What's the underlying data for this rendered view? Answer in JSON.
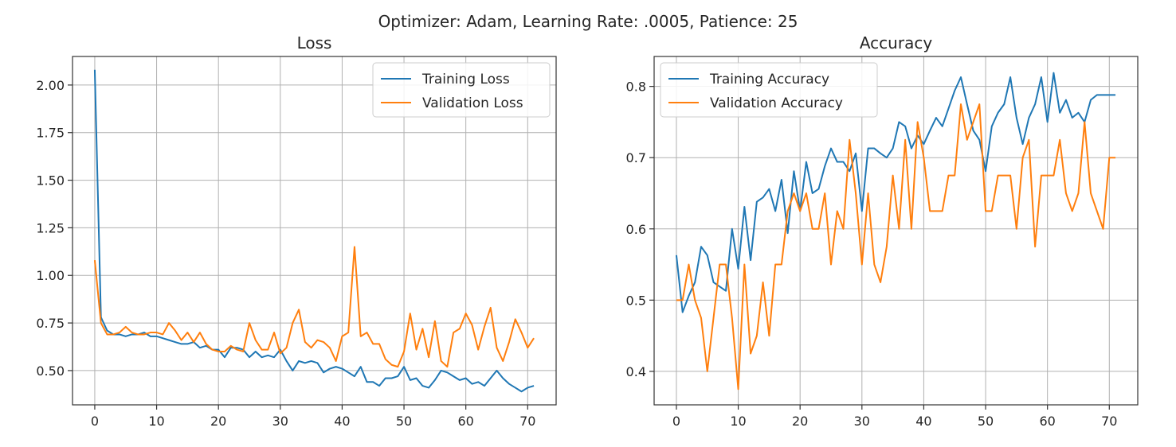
{
  "figure": {
    "suptitle": "Optimizer: Adam, Learning Rate: .0005, Patience: 25"
  },
  "chart_data": [
    {
      "type": "line",
      "title": "Loss",
      "xlabel": "",
      "ylabel": "",
      "xlim": [
        -3.6,
        74.6
      ],
      "ylim": [
        0.32,
        2.15
      ],
      "xticks": [
        0,
        10,
        20,
        30,
        40,
        50,
        60,
        70
      ],
      "yticks": [
        0.5,
        0.75,
        1.0,
        1.25,
        1.5,
        1.75,
        2.0
      ],
      "ytick_labels": [
        "0.50",
        "0.75",
        "1.00",
        "1.25",
        "1.50",
        "1.75",
        "2.00"
      ],
      "grid": true,
      "legend_position": "top-right",
      "x": [
        0,
        1,
        2,
        3,
        4,
        5,
        6,
        7,
        8,
        9,
        10,
        11,
        12,
        13,
        14,
        15,
        16,
        17,
        18,
        19,
        20,
        21,
        22,
        23,
        24,
        25,
        26,
        27,
        28,
        29,
        30,
        31,
        32,
        33,
        34,
        35,
        36,
        37,
        38,
        39,
        40,
        41,
        42,
        43,
        44,
        45,
        46,
        47,
        48,
        49,
        50,
        51,
        52,
        53,
        54,
        55,
        56,
        57,
        58,
        59,
        60,
        61,
        62,
        63,
        64,
        65,
        66,
        67,
        68,
        69,
        70,
        71
      ],
      "series": [
        {
          "name": "Training Loss",
          "color": "#1f77b4",
          "values": [
            2.08,
            0.78,
            0.71,
            0.69,
            0.69,
            0.68,
            0.69,
            0.69,
            0.7,
            0.68,
            0.68,
            0.67,
            0.66,
            0.65,
            0.64,
            0.64,
            0.65,
            0.62,
            0.63,
            0.61,
            0.61,
            0.57,
            0.62,
            0.62,
            0.61,
            0.57,
            0.6,
            0.57,
            0.58,
            0.57,
            0.61,
            0.55,
            0.5,
            0.55,
            0.54,
            0.55,
            0.54,
            0.49,
            0.51,
            0.52,
            0.51,
            0.49,
            0.47,
            0.52,
            0.44,
            0.44,
            0.42,
            0.46,
            0.46,
            0.47,
            0.52,
            0.45,
            0.46,
            0.42,
            0.41,
            0.45,
            0.5,
            0.49,
            0.47,
            0.45,
            0.46,
            0.43,
            0.44,
            0.42,
            0.46,
            0.5,
            0.46,
            0.43,
            0.41,
            0.39,
            0.41,
            0.42
          ]
        },
        {
          "name": "Validation Loss",
          "color": "#ff7f0e",
          "values": [
            1.08,
            0.75,
            0.69,
            0.69,
            0.7,
            0.73,
            0.7,
            0.69,
            0.69,
            0.7,
            0.7,
            0.69,
            0.75,
            0.71,
            0.66,
            0.7,
            0.65,
            0.7,
            0.64,
            0.61,
            0.6,
            0.6,
            0.63,
            0.61,
            0.6,
            0.75,
            0.66,
            0.61,
            0.61,
            0.7,
            0.59,
            0.62,
            0.75,
            0.82,
            0.65,
            0.62,
            0.66,
            0.65,
            0.62,
            0.55,
            0.68,
            0.7,
            1.15,
            0.68,
            0.7,
            0.64,
            0.64,
            0.56,
            0.53,
            0.52,
            0.6,
            0.8,
            0.61,
            0.72,
            0.57,
            0.76,
            0.55,
            0.52,
            0.7,
            0.72,
            0.8,
            0.74,
            0.61,
            0.73,
            0.83,
            0.62,
            0.55,
            0.65,
            0.77,
            0.7,
            0.62,
            0.67
          ]
        }
      ]
    },
    {
      "type": "line",
      "title": "Accuracy",
      "xlabel": "",
      "ylabel": "",
      "xlim": [
        -3.6,
        74.6
      ],
      "ylim": [
        0.353,
        0.842
      ],
      "xticks": [
        0,
        10,
        20,
        30,
        40,
        50,
        60,
        70
      ],
      "yticks": [
        0.4,
        0.5,
        0.6,
        0.7,
        0.8
      ],
      "ytick_labels": [
        "0.4",
        "0.5",
        "0.6",
        "0.7",
        "0.8"
      ],
      "grid": true,
      "legend_position": "top-left",
      "x": [
        0,
        1,
        2,
        3,
        4,
        5,
        6,
        7,
        8,
        9,
        10,
        11,
        12,
        13,
        14,
        15,
        16,
        17,
        18,
        19,
        20,
        21,
        22,
        23,
        24,
        25,
        26,
        27,
        28,
        29,
        30,
        31,
        32,
        33,
        34,
        35,
        36,
        37,
        38,
        39,
        40,
        41,
        42,
        43,
        44,
        45,
        46,
        47,
        48,
        49,
        50,
        51,
        52,
        53,
        54,
        55,
        56,
        57,
        58,
        59,
        60,
        61,
        62,
        63,
        64,
        65,
        66,
        67,
        68,
        69,
        70,
        71
      ],
      "series": [
        {
          "name": "Training Accuracy",
          "color": "#1f77b4",
          "values": [
            0.563,
            0.483,
            0.506,
            0.525,
            0.575,
            0.563,
            0.525,
            0.519,
            0.513,
            0.6,
            0.544,
            0.631,
            0.556,
            0.638,
            0.644,
            0.656,
            0.625,
            0.669,
            0.594,
            0.681,
            0.625,
            0.694,
            0.65,
            0.656,
            0.688,
            0.713,
            0.694,
            0.694,
            0.681,
            0.706,
            0.625,
            0.713,
            0.713,
            0.706,
            0.7,
            0.713,
            0.75,
            0.744,
            0.713,
            0.731,
            0.719,
            0.738,
            0.756,
            0.744,
            0.769,
            0.794,
            0.813,
            0.775,
            0.738,
            0.725,
            0.681,
            0.744,
            0.763,
            0.775,
            0.813,
            0.756,
            0.719,
            0.756,
            0.775,
            0.813,
            0.75,
            0.819,
            0.763,
            0.781,
            0.756,
            0.763,
            0.75,
            0.781,
            0.788,
            0.788,
            0.788,
            0.788
          ]
        },
        {
          "name": "Validation Accuracy",
          "color": "#ff7f0e",
          "values": [
            0.5,
            0.5,
            0.55,
            0.5,
            0.475,
            0.4,
            0.475,
            0.55,
            0.55,
            0.475,
            0.375,
            0.55,
            0.425,
            0.45,
            0.525,
            0.45,
            0.55,
            0.55,
            0.625,
            0.65,
            0.625,
            0.65,
            0.6,
            0.6,
            0.65,
            0.55,
            0.625,
            0.6,
            0.725,
            0.65,
            0.55,
            0.65,
            0.55,
            0.525,
            0.575,
            0.675,
            0.6,
            0.725,
            0.6,
            0.75,
            0.7,
            0.625,
            0.625,
            0.625,
            0.675,
            0.675,
            0.775,
            0.725,
            0.75,
            0.775,
            0.625,
            0.625,
            0.675,
            0.675,
            0.675,
            0.6,
            0.7,
            0.725,
            0.575,
            0.675,
            0.675,
            0.675,
            0.725,
            0.65,
            0.625,
            0.65,
            0.75,
            0.65,
            0.625,
            0.6,
            0.7,
            0.7
          ]
        }
      ]
    }
  ]
}
